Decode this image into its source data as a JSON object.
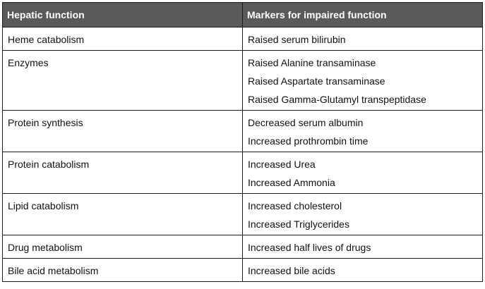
{
  "table": {
    "headers": [
      "Hepatic function",
      "Markers for impaired function"
    ],
    "rows": [
      {
        "function": "Heme catabolism",
        "markers": [
          "Raised serum bilirubin"
        ]
      },
      {
        "function": "Enzymes",
        "markers": [
          "Raised Alanine transaminase",
          "Raised Aspartate transaminase",
          "Raised Gamma-Glutamyl transpeptidase"
        ]
      },
      {
        "function": "Protein synthesis",
        "markers": [
          "Decreased serum albumin",
          "Increased prothrombin time"
        ]
      },
      {
        "function": "Protein catabolism",
        "markers": [
          "Increased Urea",
          "Increased Ammonia"
        ]
      },
      {
        "function": "Lipid catabolism",
        "markers": [
          "Increased cholesterol",
          "Increased Triglycerides"
        ]
      },
      {
        "function": "Drug metabolism",
        "markers": [
          "Increased half lives of drugs"
        ]
      },
      {
        "function": "Bile acid metabolism",
        "markers": [
          "Increased bile acids"
        ]
      }
    ]
  }
}
